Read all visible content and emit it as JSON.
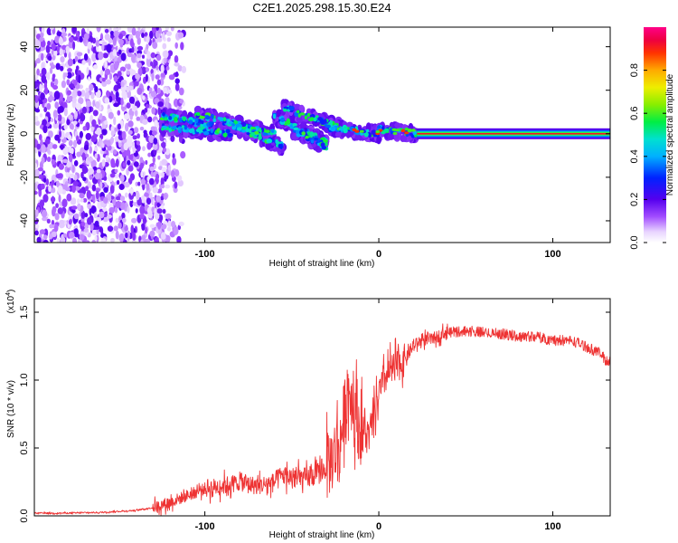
{
  "title": "C2E1.2025.298.15.30.E24",
  "chart_data": [
    {
      "type": "heatmap",
      "name": "spectrogram",
      "xlabel": "Height of straight line (km)",
      "ylabel": "Frequency (Hz)",
      "xlim": [
        -198,
        133
      ],
      "ylim": [
        -50,
        49
      ],
      "xticks": [
        -100,
        0,
        100
      ],
      "yticks": [
        -40,
        -20,
        0,
        20,
        40
      ],
      "noise_region_x": [
        -198,
        -120
      ],
      "band_region_x": [
        -125,
        22
      ],
      "band_segments": [
        {
          "x": [
            -125,
            -95
          ],
          "y": [
            8,
            4
          ]
        },
        {
          "x": [
            -125,
            -85
          ],
          "y": [
            3,
            0
          ]
        },
        {
          "x": [
            -105,
            -60
          ],
          "y": [
            9,
            0
          ]
        },
        {
          "x": [
            -85,
            -55
          ],
          "y": [
            4,
            -6
          ]
        },
        {
          "x": [
            -60,
            -30
          ],
          "y": [
            8,
            -4
          ]
        },
        {
          "x": [
            -55,
            -20
          ],
          "y": [
            12,
            2
          ]
        },
        {
          "x": [
            -50,
            -30
          ],
          "y": [
            2,
            -6
          ]
        },
        {
          "x": [
            -30,
            0
          ],
          "y": [
            3,
            0
          ]
        },
        {
          "x": [
            0,
            22
          ],
          "y": [
            2,
            0
          ]
        }
      ],
      "line_region_x": [
        22,
        133
      ],
      "line_frequency": 0,
      "colorbar": {
        "label": "Normalized spectral amplitude",
        "ticks": [
          0.0,
          0.2,
          0.4,
          0.6,
          0.8
        ],
        "tick_labels": [
          "0.0",
          "0.2",
          "0.4",
          "0.6",
          "0.8"
        ],
        "range": [
          0,
          1
        ]
      }
    },
    {
      "type": "line",
      "name": "snr",
      "xlabel": "Height of straight line (km)",
      "ylabel": "SNR (10 * v/v)",
      "multiplier": "(x10",
      "multiplier_exp": "4",
      "multiplier_close": ")",
      "xlim": [
        -198,
        133
      ],
      "ylim": [
        0,
        1.6
      ],
      "xticks": [
        -100,
        0,
        100
      ],
      "yticks": [
        0.0,
        0.5,
        1.0,
        1.5
      ],
      "color": "#ee3333",
      "series": [
        {
          "name": "snr",
          "x": [
            -198,
            -180,
            -160,
            -140,
            -130,
            -120,
            -110,
            -100,
            -90,
            -80,
            -70,
            -60,
            -55,
            -50,
            -40,
            -30,
            -22,
            -18,
            -15,
            -10,
            -5,
            0,
            5,
            10,
            15,
            20,
            25,
            30,
            35,
            40,
            50,
            60,
            70,
            80,
            90,
            100,
            110,
            115,
            120,
            125,
            128,
            130,
            133
          ],
          "y": [
            0.02,
            0.02,
            0.025,
            0.04,
            0.06,
            0.1,
            0.15,
            0.2,
            0.22,
            0.25,
            0.22,
            0.25,
            0.3,
            0.28,
            0.28,
            0.35,
            0.55,
            0.95,
            0.85,
            0.6,
            0.6,
            0.9,
            1.05,
            1.1,
            1.15,
            1.25,
            1.3,
            1.3,
            1.33,
            1.36,
            1.37,
            1.36,
            1.35,
            1.33,
            1.33,
            1.3,
            1.3,
            1.28,
            1.25,
            1.22,
            1.2,
            1.15,
            1.15
          ]
        }
      ],
      "noise_amplitude": [
        {
          "x": [
            -198,
            -130
          ],
          "amp": 0.01
        },
        {
          "x": [
            -130,
            -100
          ],
          "amp": 0.08
        },
        {
          "x": [
            -100,
            -60
          ],
          "amp": 0.12
        },
        {
          "x": [
            -60,
            -30
          ],
          "amp": 0.14
        },
        {
          "x": [
            -30,
            -8
          ],
          "amp": 0.45
        },
        {
          "x": [
            -8,
            15
          ],
          "amp": 0.22
        },
        {
          "x": [
            15,
            40
          ],
          "amp": 0.08
        },
        {
          "x": [
            40,
            133
          ],
          "amp": 0.05
        }
      ]
    }
  ]
}
